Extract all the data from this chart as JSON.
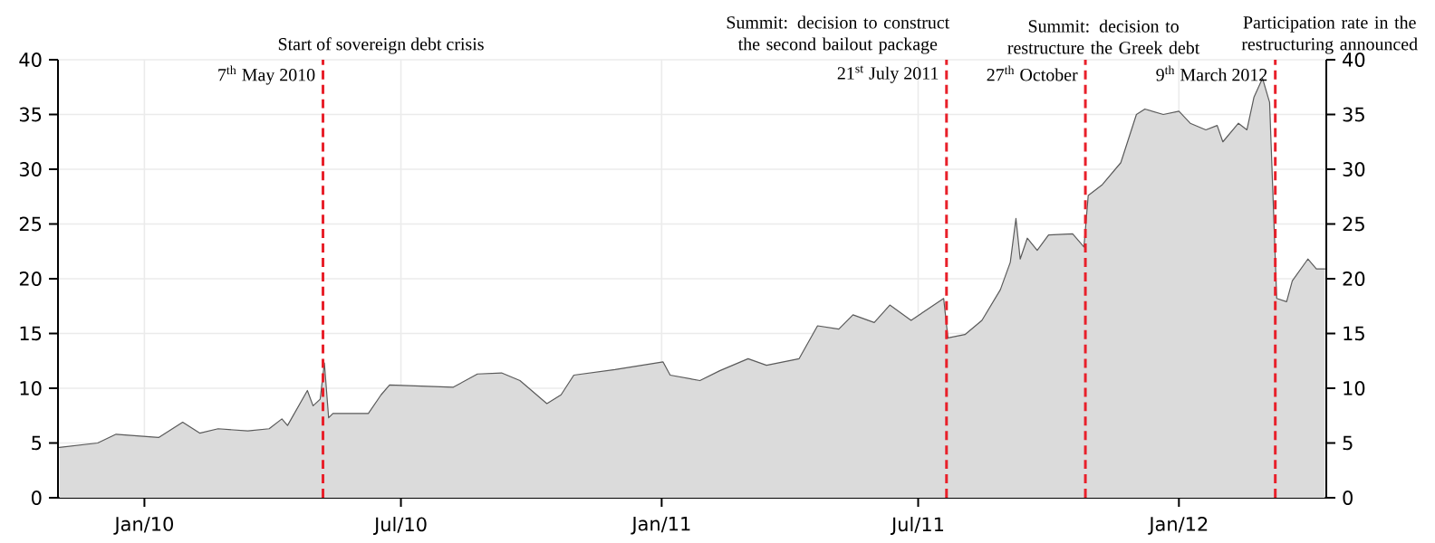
{
  "chart_data": {
    "type": "area",
    "annotations": [
      "Start of sovereign debt crisis",
      "Summit: decision to construct the second bailout package",
      "Summit: decision to restructure the Greek debt",
      "Participation rate in the restructuring announced"
    ],
    "x": [
      "2009-11-02",
      "2009-11-29",
      "2009-12-12",
      "2010-01-11",
      "2010-01-28",
      "2010-02-09",
      "2010-02-22",
      "2010-03-15",
      "2010-03-30",
      "2010-04-08",
      "2010-04-12",
      "2010-04-26",
      "2010-04-30",
      "2010-05-05",
      "2010-05-08",
      "2010-05-11",
      "2010-05-14",
      "2010-06-08",
      "2010-06-17",
      "2010-06-23",
      "2010-08-07",
      "2010-08-24",
      "2010-09-10",
      "2010-09-23",
      "2010-10-12",
      "2010-10-22",
      "2010-10-31",
      "2010-11-29",
      "2011-01-02",
      "2011-01-07",
      "2011-01-28",
      "2011-02-11",
      "2011-03-03",
      "2011-03-16",
      "2011-04-08",
      "2011-04-21",
      "2011-05-06",
      "2011-05-16",
      "2011-05-31",
      "2011-06-11",
      "2011-06-26",
      "2011-07-19",
      "2011-07-22",
      "2011-08-03",
      "2011-08-15",
      "2011-08-28",
      "2011-09-04",
      "2011-09-08",
      "2011-09-11",
      "2011-09-16",
      "2011-09-23",
      "2011-10-01",
      "2011-10-18",
      "2011-10-26",
      "2011-10-29",
      "2011-11-08",
      "2011-11-21",
      "2011-12-02",
      "2011-12-08",
      "2011-12-21",
      "2012-01-01",
      "2012-01-09",
      "2012-01-20",
      "2012-01-28",
      "2012-02-01",
      "2012-02-12",
      "2012-02-18",
      "2012-02-23",
      "2012-02-29",
      "2012-03-05",
      "2012-03-10",
      "2012-03-17",
      "2012-03-21",
      "2012-04-01",
      "2012-04-07",
      "2012-04-13"
    ],
    "series": [
      {
        "color": "#5a5a5a",
        "values": [
          4.6,
          5.0,
          5.8,
          5.5,
          6.9,
          5.9,
          6.3,
          6.1,
          6.3,
          7.2,
          6.6,
          9.8,
          8.4,
          9.0,
          12.3,
          7.3,
          7.7,
          7.7,
          9.4,
          10.3,
          10.1,
          11.3,
          11.4,
          10.7,
          8.6,
          9.4,
          11.2,
          11.7,
          12.4,
          11.2,
          10.7,
          11.6,
          12.7,
          12.1,
          12.7,
          15.7,
          15.4,
          16.7,
          16.0,
          17.6,
          16.2,
          18.2,
          14.6,
          14.9,
          16.2,
          19.0,
          21.5,
          25.5,
          21.8,
          23.7,
          22.6,
          24.0,
          24.1,
          22.9,
          27.6,
          28.6,
          30.6,
          35.0,
          35.5,
          35.0,
          35.3,
          34.2,
          33.6,
          34.0,
          32.5,
          34.2,
          33.6,
          36.6,
          38.3,
          36.1,
          18.2,
          17.9,
          19.8,
          21.8,
          20.9,
          20.9
        ]
      }
    ],
    "xlim": [
      "2009-11-01",
      "2012-04-14"
    ],
    "xticks": [
      {
        "value": "2010-01-01",
        "label": "Jan/10"
      },
      {
        "value": "2010-07-01",
        "label": "Jul/10"
      },
      {
        "value": "2011-01-01",
        "label": "Jan/11"
      },
      {
        "value": "2011-07-01",
        "label": "Jul/11"
      },
      {
        "value": "2012-01-01",
        "label": "Jan/12"
      }
    ],
    "ylim": [
      0,
      40
    ],
    "yticks": [
      0,
      5,
      10,
      15,
      20,
      25,
      30,
      35,
      40
    ],
    "y2lim": [
      0,
      40
    ],
    "y2ticks": [
      0,
      5,
      10,
      15,
      20,
      25,
      30,
      35,
      40
    ],
    "ref_lines": [
      {
        "axis": "x",
        "value": "2010-05-07",
        "label": "7$^{th}$ May 2010",
        "color": "#e8202a",
        "line_style": "dashed"
      },
      {
        "axis": "x",
        "value": "2011-07-21",
        "label": "21$^{st}$ July 2011",
        "color": "#e8202a",
        "line_style": "dashed"
      },
      {
        "axis": "x",
        "value": "2011-10-27",
        "label": "27$^{th}$ October",
        "color": "#e8202a",
        "line_style": "dashed"
      },
      {
        "axis": "x",
        "value": "2012-03-09",
        "label": "9$^{th}$ March 2012",
        "color": "#e8202a",
        "line_style": "dashed"
      }
    ],
    "grid": true
  }
}
